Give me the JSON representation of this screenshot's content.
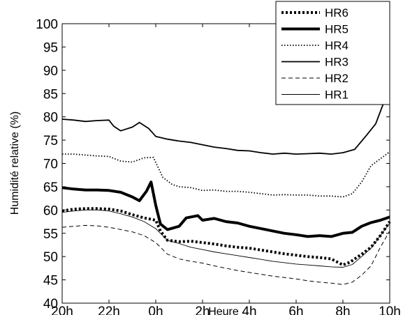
{
  "chart_data": {
    "type": "line",
    "xlabel": "Heure",
    "ylabel": "Humidité relative (%)",
    "xlim": [
      20,
      34
    ],
    "ylim": [
      40,
      100
    ],
    "x_ticks": [
      {
        "value": 20,
        "label": "20h"
      },
      {
        "value": 22,
        "label": "22h"
      },
      {
        "value": 24,
        "label": "0h"
      },
      {
        "value": 26,
        "label": "2h"
      },
      {
        "value": 28,
        "label": "4h"
      },
      {
        "value": 30,
        "label": "6h"
      },
      {
        "value": 32,
        "label": "8h"
      },
      {
        "value": 34,
        "label": "10h"
      }
    ],
    "y_ticks": [
      {
        "value": 40,
        "label": "40"
      },
      {
        "value": 45,
        "label": "45"
      },
      {
        "value": 50,
        "label": "50"
      },
      {
        "value": 55,
        "label": "55"
      },
      {
        "value": 60,
        "label": "60"
      },
      {
        "value": 65,
        "label": "65"
      },
      {
        "value": 70,
        "label": "70"
      },
      {
        "value": 75,
        "label": "75"
      },
      {
        "value": 80,
        "label": "80"
      },
      {
        "value": 85,
        "label": "85"
      },
      {
        "value": 90,
        "label": "90"
      },
      {
        "value": 95,
        "label": "95"
      },
      {
        "value": 100,
        "label": "100"
      }
    ],
    "grid": false,
    "legend_position": "top-right",
    "series": [
      {
        "name": "HR6",
        "style": "dotted-thick",
        "color": "#000000",
        "points": [
          [
            20,
            59.8
          ],
          [
            20.5,
            60.2
          ],
          [
            21,
            60.3
          ],
          [
            21.5,
            60.3
          ],
          [
            22,
            60.2
          ],
          [
            22.5,
            59.8
          ],
          [
            23,
            59.0
          ],
          [
            23.5,
            58.3
          ],
          [
            24,
            57.8
          ],
          [
            24.2,
            55.5
          ],
          [
            24.5,
            53.5
          ],
          [
            25,
            53.2
          ],
          [
            25.5,
            53.3
          ],
          [
            26,
            53.0
          ],
          [
            26.5,
            52.7
          ],
          [
            27,
            52.3
          ],
          [
            27.5,
            52.0
          ],
          [
            28,
            51.8
          ],
          [
            28.5,
            51.4
          ],
          [
            29,
            51.0
          ],
          [
            29.5,
            50.6
          ],
          [
            30,
            50.3
          ],
          [
            30.5,
            50.0
          ],
          [
            31,
            49.8
          ],
          [
            31.5,
            49.5
          ],
          [
            32,
            48.2
          ],
          [
            32.3,
            48.8
          ],
          [
            32.8,
            50.5
          ],
          [
            33.2,
            52.0
          ],
          [
            33.6,
            54.5
          ],
          [
            34,
            57.5
          ]
        ]
      },
      {
        "name": "HR5",
        "style": "solid-thick",
        "color": "#000000",
        "points": [
          [
            20,
            64.8
          ],
          [
            20.5,
            64.5
          ],
          [
            21,
            64.3
          ],
          [
            21.5,
            64.3
          ],
          [
            22,
            64.2
          ],
          [
            22.5,
            63.8
          ],
          [
            23,
            62.8
          ],
          [
            23.3,
            62.0
          ],
          [
            23.6,
            64.0
          ],
          [
            23.8,
            66.0
          ],
          [
            24,
            61.0
          ],
          [
            24.2,
            57.0
          ],
          [
            24.5,
            55.8
          ],
          [
            25,
            56.5
          ],
          [
            25.3,
            58.3
          ],
          [
            25.8,
            58.8
          ],
          [
            26,
            57.8
          ],
          [
            26.5,
            58.2
          ],
          [
            27,
            57.5
          ],
          [
            27.5,
            57.2
          ],
          [
            28,
            56.5
          ],
          [
            28.5,
            56.0
          ],
          [
            29,
            55.5
          ],
          [
            29.5,
            55.0
          ],
          [
            30,
            54.7
          ],
          [
            30.5,
            54.3
          ],
          [
            31,
            54.5
          ],
          [
            31.5,
            54.3
          ],
          [
            32,
            55.0
          ],
          [
            32.4,
            55.2
          ],
          [
            32.8,
            56.5
          ],
          [
            33.2,
            57.3
          ],
          [
            33.6,
            57.8
          ],
          [
            34,
            58.5
          ]
        ]
      },
      {
        "name": "HR4",
        "style": "dotted",
        "color": "#000000",
        "points": [
          [
            20,
            72.0
          ],
          [
            20.5,
            72.0
          ],
          [
            21,
            71.8
          ],
          [
            21.5,
            71.6
          ],
          [
            22,
            71.5
          ],
          [
            22.5,
            70.5
          ],
          [
            23,
            70.3
          ],
          [
            23.5,
            71.2
          ],
          [
            23.9,
            71.3
          ],
          [
            24,
            70.2
          ],
          [
            24.3,
            67.0
          ],
          [
            24.7,
            65.5
          ],
          [
            25,
            65.0
          ],
          [
            25.5,
            64.8
          ],
          [
            26,
            64.2
          ],
          [
            26.5,
            64.3
          ],
          [
            27,
            64.0
          ],
          [
            27.5,
            64.0
          ],
          [
            28,
            63.8
          ],
          [
            28.5,
            63.5
          ],
          [
            29,
            63.2
          ],
          [
            29.5,
            63.3
          ],
          [
            30,
            63.2
          ],
          [
            30.5,
            63.2
          ],
          [
            31,
            63.0
          ],
          [
            31.5,
            63.0
          ],
          [
            32,
            62.8
          ],
          [
            32.4,
            63.5
          ],
          [
            32.8,
            66.0
          ],
          [
            33.2,
            69.5
          ],
          [
            33.6,
            71.0
          ],
          [
            34,
            72.5
          ]
        ]
      },
      {
        "name": "HR3",
        "style": "solid",
        "color": "#000000",
        "points": [
          [
            20,
            79.5
          ],
          [
            20.5,
            79.3
          ],
          [
            21,
            79.0
          ],
          [
            21.5,
            79.2
          ],
          [
            22,
            79.3
          ],
          [
            22.2,
            78.0
          ],
          [
            22.5,
            77.0
          ],
          [
            23,
            77.8
          ],
          [
            23.3,
            78.8
          ],
          [
            23.7,
            77.5
          ],
          [
            24,
            75.8
          ],
          [
            24.5,
            75.2
          ],
          [
            25,
            74.8
          ],
          [
            25.5,
            74.5
          ],
          [
            26,
            74.0
          ],
          [
            26.5,
            73.5
          ],
          [
            27,
            73.2
          ],
          [
            27.5,
            72.8
          ],
          [
            28,
            72.7
          ],
          [
            28.5,
            72.3
          ],
          [
            29,
            72.0
          ],
          [
            29.5,
            72.2
          ],
          [
            30,
            72.0
          ],
          [
            30.5,
            72.1
          ],
          [
            31,
            72.2
          ],
          [
            31.5,
            72.0
          ],
          [
            32,
            72.3
          ],
          [
            32.5,
            73.0
          ],
          [
            33,
            76.0
          ],
          [
            33.4,
            78.5
          ],
          [
            33.7,
            82.5
          ],
          [
            34,
            84.8
          ]
        ]
      },
      {
        "name": "HR2",
        "style": "dashed",
        "color": "#000000",
        "points": [
          [
            20,
            56.3
          ],
          [
            20.5,
            56.5
          ],
          [
            21,
            56.7
          ],
          [
            21.5,
            56.6
          ],
          [
            22,
            56.3
          ],
          [
            22.5,
            55.8
          ],
          [
            23,
            55.3
          ],
          [
            23.5,
            54.5
          ],
          [
            24,
            53.0
          ],
          [
            24.5,
            50.5
          ],
          [
            25,
            49.5
          ],
          [
            25.5,
            49.0
          ],
          [
            26,
            48.6
          ],
          [
            26.5,
            48.0
          ],
          [
            27,
            47.5
          ],
          [
            27.5,
            47.0
          ],
          [
            28,
            46.6
          ],
          [
            28.5,
            46.2
          ],
          [
            29,
            45.8
          ],
          [
            29.5,
            45.5
          ],
          [
            30,
            45.2
          ],
          [
            30.5,
            44.8
          ],
          [
            31,
            44.5
          ],
          [
            31.5,
            44.3
          ],
          [
            32,
            44.0
          ],
          [
            32.4,
            44.5
          ],
          [
            32.8,
            46.0
          ],
          [
            33.2,
            48.0
          ],
          [
            33.6,
            52.0
          ],
          [
            34,
            55.5
          ]
        ]
      },
      {
        "name": "HR1",
        "style": "solid-thin",
        "color": "#000000",
        "points": [
          [
            20,
            59.5
          ],
          [
            20.5,
            59.8
          ],
          [
            21,
            60.0
          ],
          [
            21.5,
            60.0
          ],
          [
            22,
            59.8
          ],
          [
            22.5,
            59.2
          ],
          [
            23,
            58.5
          ],
          [
            23.5,
            57.5
          ],
          [
            24,
            56.0
          ],
          [
            24.5,
            53.5
          ],
          [
            25,
            52.8
          ],
          [
            25.5,
            52.0
          ],
          [
            26,
            51.5
          ],
          [
            26.5,
            51.0
          ],
          [
            27,
            50.6
          ],
          [
            27.5,
            50.2
          ],
          [
            28,
            49.8
          ],
          [
            28.5,
            49.4
          ],
          [
            29,
            49.0
          ],
          [
            29.5,
            48.7
          ],
          [
            30,
            48.4
          ],
          [
            30.5,
            48.2
          ],
          [
            31,
            48.0
          ],
          [
            31.5,
            47.8
          ],
          [
            32,
            47.7
          ],
          [
            32.4,
            48.3
          ],
          [
            32.8,
            50.0
          ],
          [
            33.2,
            51.8
          ],
          [
            33.6,
            54.5
          ],
          [
            34,
            57.2
          ]
        ]
      }
    ]
  }
}
